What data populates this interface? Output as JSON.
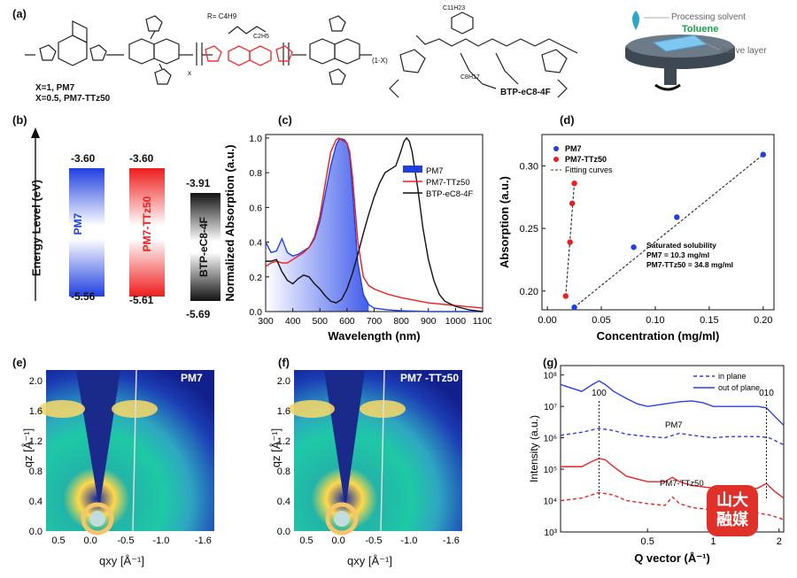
{
  "panels": {
    "a": {
      "label": "(a)",
      "polymer_note_1": "X=1, PM7",
      "polymer_note_2": "X=0.5, PM7-TTz50",
      "r_def": "R=",
      "c4h9": "C4H9",
      "c2h5": "C2H5",
      "x_sub": "x",
      "one_minus_x": "(1-X)",
      "acceptor_name": "BTP-eC8-4F",
      "c8h17": "C8H17",
      "c11h23": "C11H23",
      "device_solvent_label": "Processing solvent",
      "device_solvent_name": "Toluene",
      "device_layer_label": "Active layer"
    },
    "b": {
      "label": "(b)",
      "ylabel": "Energy Level (eV)",
      "materials": [
        {
          "name": "PM7",
          "lumo": "-3.60",
          "homo": "-5.56",
          "color": "#1f3fe0"
        },
        {
          "name": "PM7-TTz50",
          "lumo": "-3.60",
          "homo": "-5.61",
          "color": "#ee1c1c"
        },
        {
          "name": "BTP-eC8-4F",
          "lumo": "-3.91",
          "homo": "-5.69",
          "color": "#111111"
        }
      ]
    },
    "e": {
      "label": "(e)",
      "title": "PM7",
      "xlabel": "qxy [Å⁻¹]",
      "ylabel": "qz [Å⁻¹]",
      "xticks": [
        "0.5",
        "0.0",
        "-0.5",
        "-1.0",
        "-1.6"
      ],
      "yticks": [
        "0.0",
        "0.4",
        "0.8",
        "1.2",
        "1.6",
        "2.0"
      ]
    },
    "f": {
      "label": "(f)",
      "title": "PM7 -TTz50",
      "xlabel": "qxy [Å⁻¹]",
      "ylabel": "qz [Å⁻¹]",
      "xticks": [
        "0.5",
        "0.0",
        "-0.5",
        "-1.0",
        "-1.6"
      ],
      "yticks": [
        "0.0",
        "0.4",
        "0.8",
        "1.2",
        "1.6",
        "2.0"
      ]
    },
    "watermark": {
      "line1": "山大",
      "line2": "融媒"
    }
  },
  "chart_data": [
    {
      "id": "c",
      "label": "(c)",
      "type": "line",
      "xlabel": "Wavelength (nm)",
      "ylabel": "Normalized Absorption (a.u.)",
      "xlim": [
        300,
        1100
      ],
      "ylim": [
        0,
        1.02
      ],
      "xticks": [
        300,
        400,
        500,
        600,
        700,
        800,
        900,
        1000,
        1100
      ],
      "yticks": [
        0.0,
        0.2,
        0.4,
        0.6,
        0.8,
        1.0
      ],
      "legend_position": "center-right",
      "series": [
        {
          "name": "PM7",
          "color": "#1f3fe0",
          "x": [
            300,
            320,
            340,
            360,
            380,
            400,
            420,
            440,
            460,
            480,
            500,
            520,
            540,
            560,
            570,
            580,
            590,
            600,
            610,
            620,
            640,
            660,
            680,
            700,
            750,
            800,
            900,
            1100
          ],
          "y": [
            0.4,
            0.34,
            0.35,
            0.42,
            0.34,
            0.32,
            0.33,
            0.35,
            0.37,
            0.42,
            0.52,
            0.68,
            0.84,
            0.96,
            0.99,
            0.995,
            0.99,
            0.97,
            0.9,
            0.7,
            0.28,
            0.1,
            0.04,
            0.02,
            0.01,
            0.005,
            0,
            0
          ]
        },
        {
          "name": "PM7-TTz50",
          "color": "#ee1c1c",
          "x": [
            300,
            320,
            340,
            360,
            380,
            400,
            420,
            440,
            460,
            480,
            500,
            520,
            540,
            560,
            570,
            580,
            590,
            600,
            610,
            620,
            640,
            660,
            680,
            700,
            750,
            800,
            900,
            1100
          ],
          "y": [
            0.26,
            0.28,
            0.29,
            0.28,
            0.28,
            0.3,
            0.32,
            0.34,
            0.37,
            0.43,
            0.55,
            0.74,
            0.92,
            0.99,
            1.0,
            0.99,
            0.98,
            0.97,
            0.92,
            0.78,
            0.4,
            0.2,
            0.15,
            0.13,
            0.1,
            0.08,
            0.05,
            0.02
          ]
        },
        {
          "name": "BTP-eC8-4F",
          "color": "#111111",
          "x": [
            300,
            320,
            340,
            360,
            380,
            400,
            420,
            440,
            460,
            480,
            500,
            520,
            540,
            560,
            580,
            600,
            620,
            640,
            660,
            680,
            700,
            720,
            740,
            760,
            780,
            800,
            810,
            820,
            830,
            840,
            860,
            880,
            900,
            920,
            940,
            960,
            1000,
            1050,
            1100
          ],
          "y": [
            0.29,
            0.29,
            0.3,
            0.23,
            0.18,
            0.16,
            0.19,
            0.21,
            0.2,
            0.16,
            0.13,
            0.09,
            0.06,
            0.05,
            0.07,
            0.13,
            0.22,
            0.33,
            0.45,
            0.56,
            0.66,
            0.74,
            0.8,
            0.82,
            0.84,
            0.93,
            0.98,
            1.0,
            0.98,
            0.92,
            0.72,
            0.48,
            0.3,
            0.18,
            0.1,
            0.06,
            0.03,
            0.01,
            0.0
          ]
        }
      ]
    },
    {
      "id": "d",
      "label": "(d)",
      "type": "scatter",
      "xlabel": "Concentration (mg/ml)",
      "ylabel": "Absorption (a.u.)",
      "xlim": [
        -0.005,
        0.21
      ],
      "ylim": [
        0.185,
        0.325
      ],
      "xticks": [
        0.0,
        0.05,
        0.1,
        0.15,
        0.2
      ],
      "yticks": [
        0.2,
        0.25,
        0.3
      ],
      "legend_position": "top-left",
      "series": [
        {
          "name": "PM7",
          "color": "#1f3fe0",
          "x": [
            0.025,
            0.08,
            0.12,
            0.2
          ],
          "y": [
            0.187,
            0.235,
            0.259,
            0.309
          ]
        },
        {
          "name": "PM7-TTz50",
          "color": "#ee1c1c",
          "x": [
            0.017,
            0.021,
            0.023,
            0.025
          ],
          "y": [
            0.196,
            0.239,
            0.27,
            0.286
          ]
        }
      ],
      "fit_label": "Fitting curves",
      "annotations": [
        "Saturated solubility",
        "PM7 = 10.3 mg/ml",
        "PM7-TTz50 = 34.8 mg/ml"
      ]
    },
    {
      "id": "g",
      "label": "(g)",
      "type": "line",
      "xlabel": "Q vector (Å⁻¹)",
      "ylabel": "Intensity (a.u.)",
      "xscale": "log",
      "yscale": "log",
      "xlim": [
        0.2,
        2.1
      ],
      "ylim": [
        1000,
        200000000
      ],
      "xticks": [
        0.5,
        1,
        2
      ],
      "yticks": [
        1000,
        10000,
        100000,
        1000000,
        10000000,
        100000000
      ],
      "ytick_labels": [
        "10³",
        "10⁴",
        "10⁵",
        "10⁶",
        "10⁷",
        "10⁸"
      ],
      "legend_position": "top-right",
      "legend": [
        {
          "name": "in plane",
          "style": "dashed"
        },
        {
          "name": "out of plane",
          "style": "solid"
        }
      ],
      "peak_labels": [
        "100",
        "010"
      ],
      "peak_q": [
        0.3,
        1.75
      ],
      "series_labels": [
        "PM7",
        "PM7-TTz50"
      ],
      "series": [
        {
          "name": "PM7 out of plane",
          "color": "#2b3fe6",
          "dashed": false,
          "x": [
            0.2,
            0.22,
            0.25,
            0.28,
            0.3,
            0.32,
            0.35,
            0.4,
            0.45,
            0.5,
            0.6,
            0.7,
            0.8,
            0.9,
            1.0,
            1.2,
            1.4,
            1.6,
            1.75,
            1.9,
            2.1
          ],
          "y": [
            50000000.0,
            40000000.0,
            30000000.0,
            50000000.0,
            65000000.0,
            50000000.0,
            30000000.0,
            18000000.0,
            12000000.0,
            10000000.0,
            12000000.0,
            14000000.0,
            15000000.0,
            13000000.0,
            10000000.0,
            10000000.0,
            10000000.0,
            10000000.0,
            9000000.0,
            5000000.0,
            2500000.0
          ]
        },
        {
          "name": "PM7 in plane",
          "color": "#2b3fe6",
          "dashed": true,
          "x": [
            0.2,
            0.25,
            0.3,
            0.35,
            0.4,
            0.5,
            0.6,
            0.7,
            0.8,
            1.0,
            1.2,
            1.4,
            1.6,
            1.8,
            2.1
          ],
          "y": [
            1200000.0,
            1500000.0,
            2000000.0,
            1700000.0,
            1300000.0,
            1100000.0,
            1000000.0,
            1400000.0,
            1200000.0,
            1000000.0,
            1100000.0,
            1100000.0,
            1100000.0,
            1000000.0,
            600000.0
          ]
        },
        {
          "name": "PM7-TTz50 out of plane",
          "color": "#ee2222",
          "dashed": false,
          "x": [
            0.2,
            0.25,
            0.28,
            0.3,
            0.32,
            0.35,
            0.4,
            0.5,
            0.6,
            0.65,
            0.7,
            0.8,
            1.0,
            1.2,
            1.4,
            1.6,
            1.75,
            1.9,
            2.1
          ],
          "y": [
            120000.0,
            120000.0,
            180000.0,
            220000.0,
            200000.0,
            120000.0,
            60000.0,
            40000.0,
            40000.0,
            55000.0,
            40000.0,
            30000.0,
            25000.0,
            23000.0,
            22000.0,
            25000.0,
            35000.0,
            20000.0,
            12000.0
          ]
        },
        {
          "name": "PM7-TTz50 in plane",
          "color": "#ee2222",
          "dashed": true,
          "x": [
            0.2,
            0.25,
            0.3,
            0.35,
            0.4,
            0.5,
            0.6,
            0.65,
            0.7,
            0.8,
            1.0,
            1.2,
            1.4,
            1.6,
            1.8,
            2.1
          ],
          "y": [
            10000.0,
            12000.0,
            18000.0,
            15000.0,
            10000.0,
            8000.0,
            7000.0,
            13000.0,
            8000.0,
            6000.0,
            5000.0,
            4500.0,
            4000.0,
            4000.0,
            3500.0,
            2500.0
          ]
        }
      ]
    }
  ]
}
